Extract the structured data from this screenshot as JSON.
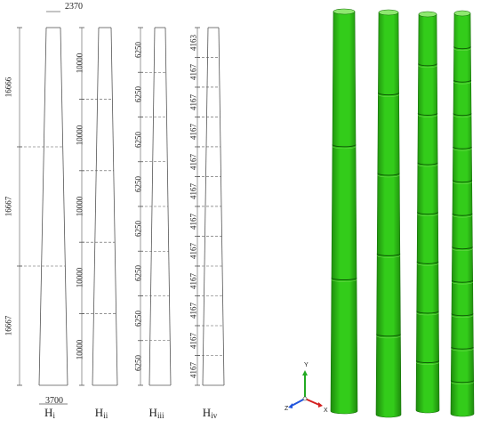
{
  "top_dimension": "2370",
  "bottom_dimension": "3700",
  "columns": [
    {
      "name": "H",
      "sub": "i",
      "segments": [
        {
          "label": "16666",
          "length": 16666
        },
        {
          "label": "16667",
          "length": 16667
        },
        {
          "label": "16667",
          "length": 16667
        }
      ]
    },
    {
      "name": "H",
      "sub": "ii",
      "segments": [
        {
          "label": "10000",
          "length": 10000
        },
        {
          "label": "10000",
          "length": 10000
        },
        {
          "label": "10000",
          "length": 10000
        },
        {
          "label": "10000",
          "length": 10000
        },
        {
          "label": "10000",
          "length": 10000
        }
      ]
    },
    {
      "name": "H",
      "sub": "iii",
      "segments": [
        {
          "label": "6250",
          "length": 6250
        },
        {
          "label": "6250",
          "length": 6250
        },
        {
          "label": "6250",
          "length": 6250
        },
        {
          "label": "6250",
          "length": 6250
        },
        {
          "label": "6250",
          "length": 6250
        },
        {
          "label": "6250",
          "length": 6250
        },
        {
          "label": "6250",
          "length": 6250
        },
        {
          "label": "6250",
          "length": 6250
        }
      ]
    },
    {
      "name": "H",
      "sub": "iv",
      "segments": [
        {
          "label": "4163",
          "length": 4163
        },
        {
          "label": "4167",
          "length": 4167
        },
        {
          "label": "4167",
          "length": 4167
        },
        {
          "label": "4167",
          "length": 4167
        },
        {
          "label": "4167",
          "length": 4167
        },
        {
          "label": "4167",
          "length": 4167
        },
        {
          "label": "4167",
          "length": 4167
        },
        {
          "label": "4167",
          "length": 4167
        },
        {
          "label": "4167",
          "length": 4167
        },
        {
          "label": "4167",
          "length": 4167
        },
        {
          "label": "4167",
          "length": 4167
        },
        {
          "label": "4167",
          "length": 4167
        }
      ]
    }
  ],
  "render_models": [
    {
      "sections": 3
    },
    {
      "sections": 5
    },
    {
      "sections": 8
    },
    {
      "sections": 12
    }
  ],
  "axis_triad": {
    "x": "X",
    "y": "Y",
    "z": "Z"
  },
  "colors": {
    "tower_green": "#33cc1a",
    "tower_dark": "#1e8a0c",
    "line": "#555555",
    "axis_x": "#d42020",
    "axis_y": "#22aa22",
    "axis_z": "#2255dd"
  }
}
